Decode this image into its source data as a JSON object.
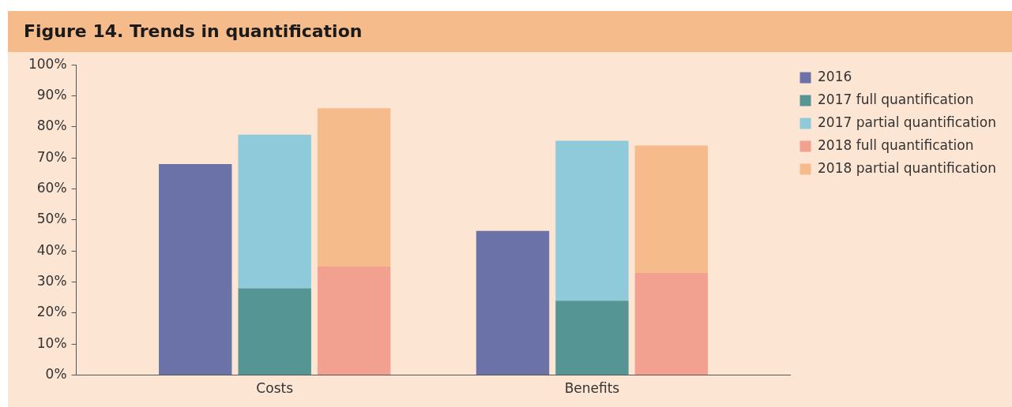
{
  "chart_data": {
    "type": "bar",
    "title": "Figure 14. Trends in quantification",
    "categories": [
      null,
      null,
      "Costs",
      null,
      null,
      null,
      "Benefits",
      null,
      null
    ],
    "stacked": true,
    "series": [
      {
        "name": "2016",
        "color": "#6b72a8",
        "values": [
          null,
          68,
          null,
          null,
          null,
          46.5,
          null,
          null,
          null
        ]
      },
      {
        "name": "2017 full quantification",
        "color": "#559593",
        "values": [
          null,
          null,
          28,
          null,
          null,
          null,
          24,
          null,
          null
        ]
      },
      {
        "name": "2017 partial quantification",
        "color": "#8ecad9",
        "values": [
          null,
          null,
          49.5,
          null,
          null,
          null,
          51.5,
          null,
          null
        ]
      },
      {
        "name": "2018 full quantification",
        "color": "#f2a08f",
        "values": [
          null,
          null,
          null,
          35,
          null,
          null,
          null,
          33,
          null
        ]
      },
      {
        "name": "2018 partial quantification",
        "color": "#f5bb8a",
        "values": [
          null,
          null,
          null,
          51,
          null,
          null,
          null,
          41,
          null
        ]
      }
    ],
    "ylim": [
      0,
      100
    ],
    "yticks": [
      {
        "value": 0,
        "label": "0%"
      },
      {
        "value": 10,
        "label": "10%"
      },
      {
        "value": 20,
        "label": "20%"
      },
      {
        "value": 30,
        "label": "30%"
      },
      {
        "value": 40,
        "label": "40%"
      },
      {
        "value": 50,
        "label": "50%"
      },
      {
        "value": 60,
        "label": "60%"
      },
      {
        "value": 70,
        "label": "70%"
      },
      {
        "value": 80,
        "label": "80%"
      },
      {
        "value": 90,
        "label": "90%"
      },
      {
        "value": 100,
        "label": "100%"
      }
    ],
    "grid": false,
    "legend": "right"
  }
}
